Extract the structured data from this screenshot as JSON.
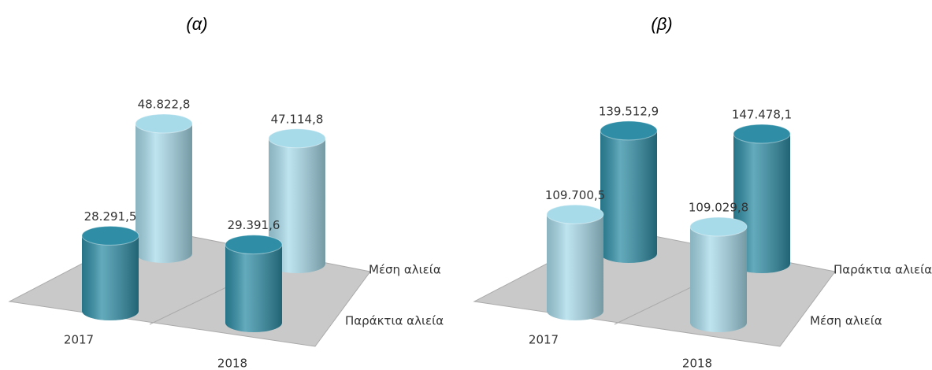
{
  "chart_data": [
    {
      "type": "bar3d",
      "title": "(α)",
      "categories": [
        "2017",
        "2018"
      ],
      "series": [
        {
          "name": "Παράκτια αλιεία",
          "color": "#2f8ea6",
          "values": [
            28291.5,
            29391.6
          ],
          "value_labels": [
            "28.291,5",
            "29.391,6"
          ]
        },
        {
          "name": "Μέση αλιεία",
          "color": "#a8dbea",
          "values": [
            48822.8,
            47114.8
          ],
          "value_labels": [
            "48.822,8",
            "47.114,8"
          ]
        }
      ]
    },
    {
      "type": "bar3d",
      "title": "(β)",
      "categories": [
        "2017",
        "2018"
      ],
      "series": [
        {
          "name": "Μέση αλιεία",
          "color": "#a8dbea",
          "values": [
            109700.5,
            109029.8
          ],
          "value_labels": [
            "109.700,5",
            "109.029,8"
          ]
        },
        {
          "name": "Παράκτια αλιεία",
          "color": "#2f8ea6",
          "values": [
            139512.9,
            147478.1
          ],
          "value_labels": [
            "139.512,9",
            "147.478,1"
          ]
        }
      ]
    }
  ]
}
